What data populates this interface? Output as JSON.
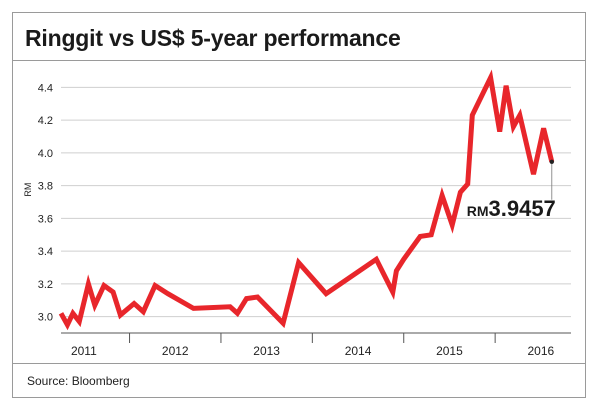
{
  "title": "Ringgit vs US$ 5-year performance",
  "source": "Source: Bloomberg",
  "chart_data": {
    "type": "line",
    "ylabel": "RM",
    "ylim": [
      2.9,
      4.5
    ],
    "yticks": [
      3.0,
      3.2,
      3.4,
      3.6,
      3.8,
      4.0,
      4.2,
      4.4
    ],
    "ytick_labels": [
      "3.0",
      "3.2",
      "3.4",
      "3.6",
      "3.8",
      "4.0",
      "4.2",
      "4.4"
    ],
    "xlim": [
      2010.75,
      2016.33
    ],
    "year_labels": [
      {
        "label": "2011",
        "center": 2011.0
      },
      {
        "label": "2012",
        "center": 2012.0
      },
      {
        "label": "2013",
        "center": 2013.0
      },
      {
        "label": "2014",
        "center": 2014.0
      },
      {
        "label": "2015",
        "center": 2015.0
      },
      {
        "label": "2016",
        "center": 2016.0
      }
    ],
    "year_boundaries": [
      2011.5,
      2012.5,
      2013.5,
      2014.5,
      2015.5
    ],
    "line_color": "#e8262b",
    "grid": true,
    "series": [
      {
        "x": [
          2010.75,
          2010.82,
          2010.88,
          2010.95,
          2011.05,
          2011.12,
          2011.22,
          2011.32,
          2011.4,
          2011.55,
          2011.65,
          2011.78,
          2011.92,
          2012.2,
          2012.6,
          2012.68,
          2012.78,
          2012.9,
          2013.18,
          2013.35,
          2013.65,
          2014.2,
          2014.38,
          2014.42,
          2014.5,
          2014.68,
          2014.8,
          2014.92,
          2015.03,
          2015.12,
          2015.2,
          2015.25,
          2015.45,
          2015.55,
          2015.62,
          2015.7,
          2015.77,
          2015.92,
          2016.03,
          2016.12
        ],
        "y": [
          3.02,
          2.95,
          3.02,
          2.97,
          3.2,
          3.07,
          3.19,
          3.15,
          3.01,
          3.08,
          3.03,
          3.19,
          3.14,
          3.05,
          3.06,
          3.02,
          3.11,
          3.12,
          2.96,
          3.33,
          3.14,
          3.35,
          3.15,
          3.28,
          3.35,
          3.49,
          3.5,
          3.74,
          3.56,
          3.76,
          3.81,
          4.23,
          4.46,
          4.13,
          4.41,
          4.16,
          4.23,
          3.87,
          4.15,
          3.9457
        ]
      }
    ],
    "annotation": {
      "prefix": "RM",
      "value": "3.9457"
    }
  }
}
